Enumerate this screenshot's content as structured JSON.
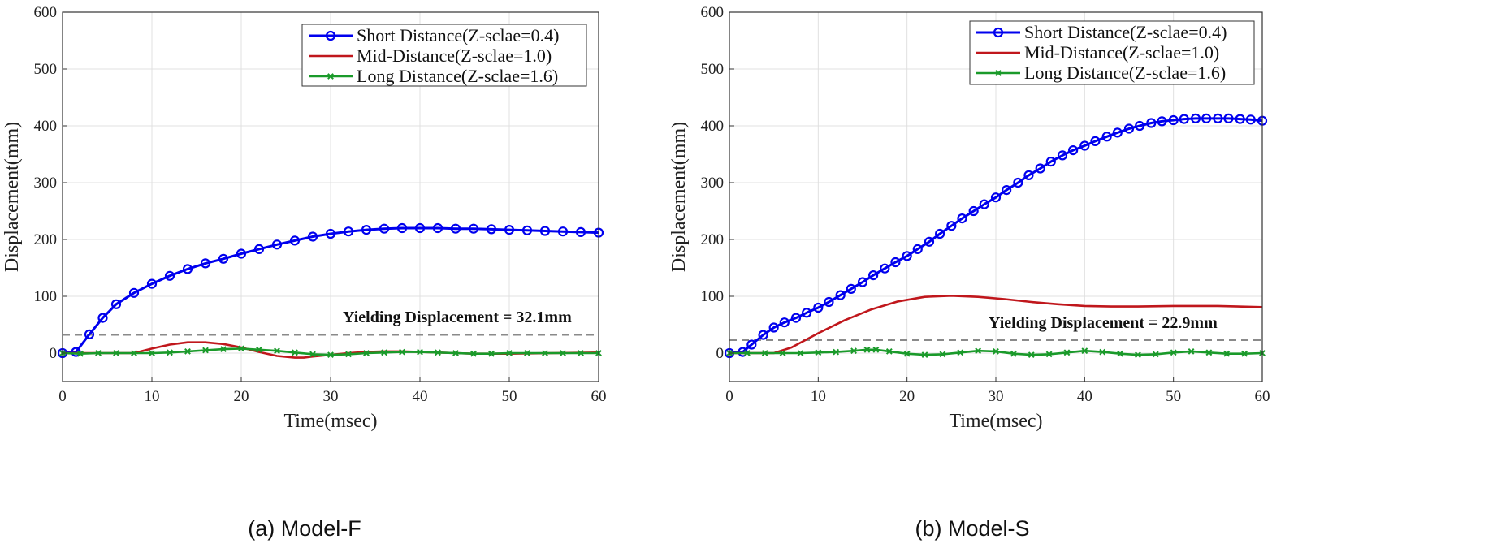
{
  "colors": {
    "short": "#0000ee",
    "mid": "#c0171c",
    "long": "#1a9a2a",
    "yield": "#8a8a8a"
  },
  "chart_data": [
    {
      "type": "line",
      "caption": "(a) Model-F",
      "xlabel": "Time(msec)",
      "ylabel": "Displacement(mm)",
      "xlim": [
        0,
        60
      ],
      "ylim": [
        -50,
        600
      ],
      "xticks": [
        0,
        10,
        20,
        30,
        40,
        50,
        60
      ],
      "yticks": [
        0,
        100,
        200,
        300,
        400,
        500,
        600
      ],
      "grid": true,
      "legend_position": "top-right",
      "series": [
        {
          "name": "Short Distance(Z-sclae=0.4)",
          "marker": "circle",
          "x": [
            0,
            1.5,
            3,
            4.5,
            6,
            8,
            10,
            12,
            14,
            16,
            18,
            20,
            22,
            24,
            26,
            28,
            30,
            32,
            34,
            36,
            38,
            40,
            42,
            44,
            46,
            48,
            50,
            52,
            54,
            56,
            58,
            60
          ],
          "y": [
            0,
            2,
            33,
            62,
            86,
            106,
            122,
            136,
            148,
            158,
            166,
            175,
            183,
            191,
            198,
            205,
            210,
            214,
            217,
            219,
            220,
            220,
            220,
            219,
            219,
            218,
            217,
            216,
            215,
            214,
            213,
            212
          ]
        },
        {
          "name": "Mid-Distance(Z-sclae=1.0)",
          "marker": "none",
          "x": [
            0,
            8,
            10,
            12,
            14,
            16,
            18,
            20,
            22,
            24,
            26,
            27,
            28,
            30,
            32,
            34,
            36,
            38,
            40,
            42,
            44,
            46,
            50,
            55,
            60
          ],
          "y": [
            0,
            0,
            8,
            15,
            19,
            19,
            16,
            10,
            2,
            -5,
            -8,
            -8,
            -6,
            -3,
            0,
            2,
            3,
            3,
            2,
            1,
            0,
            -1,
            -1,
            0,
            1
          ]
        },
        {
          "name": "Long Distance(Z-sclae=1.6)",
          "marker": "x",
          "x": [
            0,
            2,
            4,
            6,
            8,
            10,
            12,
            14,
            16,
            18,
            20,
            22,
            24,
            26,
            28,
            30,
            32,
            34,
            36,
            38,
            40,
            42,
            44,
            46,
            48,
            50,
            52,
            54,
            56,
            58,
            60
          ],
          "y": [
            0,
            -1,
            0,
            0,
            0,
            0,
            1,
            3,
            5,
            7,
            8,
            6,
            4,
            1,
            -2,
            -3,
            -2,
            0,
            1,
            2,
            2,
            1,
            0,
            -1,
            -1,
            0,
            0,
            0,
            0,
            0,
            0
          ]
        }
      ],
      "yield_line": {
        "value": 32.1,
        "label": "Yielding Displacement = 32.1mm"
      }
    },
    {
      "type": "line",
      "caption": "(b) Model-S",
      "xlabel": "Time(msec)",
      "ylabel": "Displacement(mm)",
      "xlim": [
        0,
        60
      ],
      "ylim": [
        -50,
        600
      ],
      "xticks": [
        0,
        10,
        20,
        30,
        40,
        50,
        60
      ],
      "yticks": [
        0,
        100,
        200,
        300,
        400,
        500,
        600
      ],
      "grid": true,
      "legend_position": "top-right",
      "series": [
        {
          "name": "Short Distance(Z-sclae=0.4)",
          "marker": "circle",
          "x": [
            0,
            1.5,
            2.5,
            3.8,
            5,
            6.2,
            7.5,
            8.7,
            10,
            11.2,
            12.5,
            13.7,
            15,
            16.2,
            17.5,
            18.7,
            20,
            21.2,
            22.5,
            23.7,
            25,
            26.2,
            27.5,
            28.7,
            30,
            31.2,
            32.5,
            33.7,
            35,
            36.2,
            37.5,
            38.7,
            40,
            41.2,
            42.5,
            43.7,
            45,
            46.2,
            47.5,
            48.7,
            50,
            51.2,
            52.5,
            53.7,
            55,
            56.2,
            57.5,
            58.7,
            60
          ],
          "y": [
            0,
            2,
            15,
            32,
            45,
            54,
            62,
            71,
            80,
            90,
            102,
            113,
            125,
            137,
            149,
            160,
            171,
            183,
            196,
            210,
            224,
            237,
            250,
            262,
            274,
            287,
            300,
            313,
            325,
            337,
            348,
            357,
            365,
            373,
            381,
            388,
            395,
            400,
            405,
            408,
            410,
            412,
            413,
            413,
            413,
            413,
            412,
            411,
            409
          ]
        },
        {
          "name": "Mid-Distance(Z-sclae=1.0)",
          "marker": "none",
          "x": [
            0,
            5,
            7,
            10,
            13,
            16,
            19,
            22,
            25,
            28,
            31,
            34,
            37,
            40,
            43,
            46,
            50,
            55,
            60
          ],
          "y": [
            0,
            0,
            10,
            35,
            58,
            77,
            91,
            99,
            101,
            99,
            95,
            90,
            86,
            83,
            82,
            82,
            83,
            83,
            81
          ]
        },
        {
          "name": "Long Distance(Z-sclae=1.6)",
          "marker": "x",
          "x": [
            0,
            2,
            4,
            6,
            8,
            10,
            12,
            14,
            15.5,
            16.5,
            18,
            20,
            22,
            24,
            26,
            28,
            30,
            32,
            34,
            36,
            38,
            40,
            42,
            44,
            46,
            48,
            50,
            52,
            54,
            56,
            58,
            60
          ],
          "y": [
            0,
            0,
            0,
            0,
            0,
            1,
            2,
            4,
            6,
            6,
            3,
            -1,
            -3,
            -2,
            1,
            4,
            3,
            -1,
            -3,
            -2,
            1,
            4,
            2,
            -1,
            -3,
            -2,
            1,
            3,
            1,
            -1,
            -1,
            0
          ]
        }
      ],
      "yield_line": {
        "value": 22.9,
        "label": "Yielding Displacement = 22.9mm"
      }
    }
  ]
}
